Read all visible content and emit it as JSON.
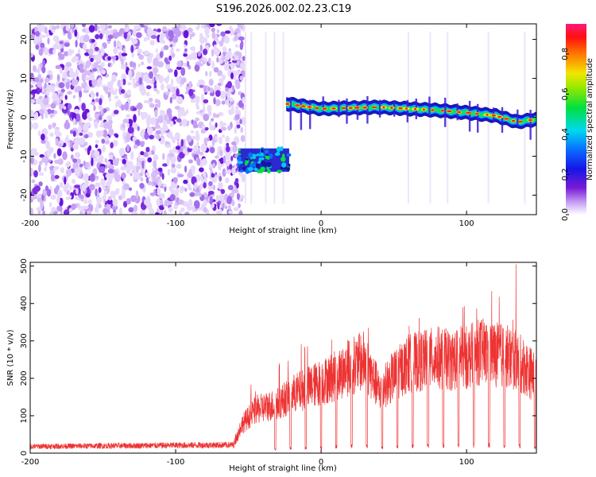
{
  "title": "S196.2026.002.02.23.C19",
  "chart_data": [
    {
      "type": "heatmap",
      "name": "spectrogram",
      "xlabel": "Height of straight line (km)",
      "ylabel": "Frequency (Hz)",
      "xlim": [
        -200,
        148
      ],
      "ylim": [
        -25,
        24
      ],
      "xticks": [
        "-200",
        "-100",
        "0",
        "100"
      ],
      "xtick_values": [
        -200,
        -100,
        0,
        100
      ],
      "yticks": [
        "20",
        "10",
        "0",
        "-10",
        "-20"
      ],
      "ytick_values": [
        20,
        10,
        0,
        -10,
        -20
      ],
      "colorbar": {
        "label": "Normalized spectral amplitude",
        "range": [
          0,
          0.95
        ],
        "ticks": [
          "0.0",
          "0.2",
          "0.4",
          "0.6",
          "0.8"
        ],
        "tick_values": [
          0,
          0.2,
          0.4,
          0.6,
          0.8
        ]
      },
      "noise_region_x": [
        -200,
        -57
      ],
      "low_cluster": {
        "x": [
          -57,
          -22
        ],
        "freq_center": -11
      },
      "track": {
        "x": [
          -24,
          0,
          20,
          40,
          60,
          80,
          100,
          120,
          135,
          148
        ],
        "freq": [
          3.5,
          2.2,
          2.4,
          2.6,
          2.2,
          1.8,
          1.2,
          0.4,
          -1.2,
          -0.5
        ]
      }
    },
    {
      "type": "line",
      "name": "snr",
      "xlabel": "Height of straight line (km)",
      "ylabel": "SNR (10 * v/v)",
      "xlim": [
        -200,
        148
      ],
      "ylim": [
        0,
        510
      ],
      "xticks": [
        "-200",
        "-100",
        "0",
        "100"
      ],
      "xtick_values": [
        -200,
        -100,
        0,
        100
      ],
      "yticks": [
        "0",
        "100",
        "200",
        "300",
        "400",
        "500"
      ],
      "ytick_values": [
        0,
        100,
        200,
        300,
        400,
        500
      ],
      "color": "#ee3333",
      "envelope": {
        "x": [
          -200,
          -60,
          -55,
          -45,
          -30,
          -20,
          -10,
          0,
          10,
          20,
          30,
          40,
          50,
          60,
          70,
          80,
          90,
          100,
          110,
          120,
          130,
          140,
          148
        ],
        "y": [
          18,
          22,
          90,
          140,
          160,
          190,
          210,
          230,
          250,
          280,
          300,
          200,
          250,
          290,
          300,
          310,
          300,
          310,
          330,
          320,
          310,
          280,
          240
        ]
      },
      "peak": {
        "x": 134,
        "y": 505
      }
    }
  ]
}
